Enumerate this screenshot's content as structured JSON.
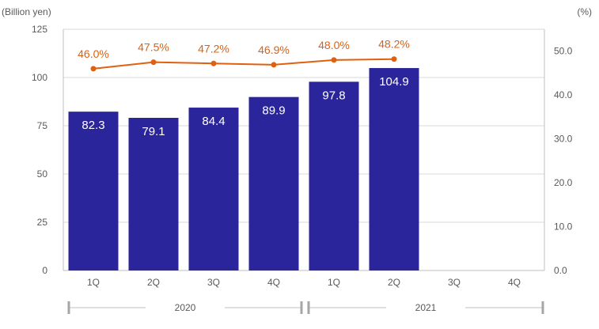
{
  "chart_data": {
    "type": "bar",
    "y_left_unit": "(Billion yen)",
    "y_right_unit": "(%)",
    "categories": [
      "1Q",
      "2Q",
      "3Q",
      "4Q",
      "1Q",
      "2Q",
      "3Q",
      "4Q"
    ],
    "year_groups": [
      {
        "label": "2020",
        "start": 0,
        "end": 3
      },
      {
        "label": "2021",
        "start": 4,
        "end": 7
      }
    ],
    "series": [
      {
        "type": "bar",
        "axis": "left",
        "values": [
          82.3,
          79.1,
          84.4,
          89.9,
          97.8,
          104.9,
          null,
          null
        ],
        "labels": [
          "82.3",
          "79.1",
          "84.4",
          "89.9",
          "97.8",
          "104.9",
          "",
          ""
        ]
      },
      {
        "type": "line",
        "axis": "right",
        "values": [
          46.0,
          47.5,
          47.2,
          46.9,
          48.0,
          48.2,
          null,
          null
        ],
        "labels": [
          "46.0%",
          "47.5%",
          "47.2%",
          "46.9%",
          "48.0%",
          "48.2%",
          "",
          ""
        ]
      }
    ],
    "y_left": {
      "lim": [
        0,
        125
      ],
      "ticks": [
        0,
        25,
        50,
        75,
        100,
        125
      ],
      "tick_labels": [
        "0",
        "25",
        "50",
        "75",
        "100",
        "125"
      ]
    },
    "y_right": {
      "lim": [
        0,
        55
      ],
      "ticks": [
        0,
        10,
        20,
        30,
        40,
        50
      ],
      "tick_labels": [
        "0.0",
        "10.0",
        "20.0",
        "30.0",
        "40.0",
        "50.0"
      ]
    },
    "grid": true,
    "colors": {
      "bar": "#2b259b",
      "line": "#e0600f",
      "grid": "#d9d9d9",
      "axis": "#bfbfbf",
      "text": "#595959"
    }
  }
}
